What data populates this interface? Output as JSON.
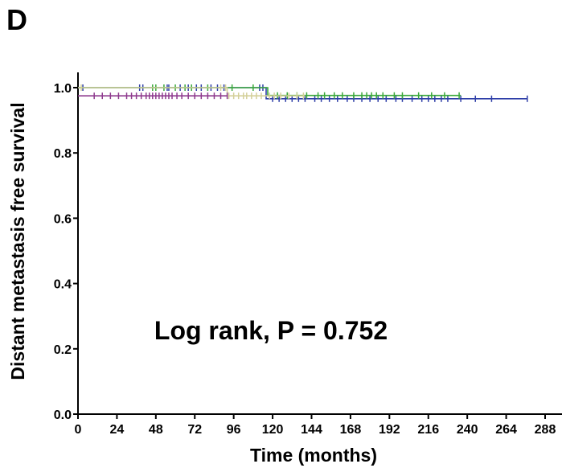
{
  "panel_label": "D",
  "chart_data": {
    "type": "line",
    "subtype": "kaplan-meier",
    "ylabel": "Distant metastasis free survival",
    "xlabel": "Time (months)",
    "annotation": "Log rank, P = 0.752",
    "xlim": [
      0,
      300
    ],
    "ylim": [
      0,
      1.05
    ],
    "xticks": [
      0,
      24,
      48,
      72,
      96,
      120,
      144,
      168,
      192,
      216,
      240,
      264,
      288
    ],
    "yticks": [
      0.0,
      0.2,
      0.4,
      0.6,
      0.8,
      1.0
    ],
    "ytick_labels": [
      "0.0",
      "0.2",
      "0.4",
      "0.6",
      "0.8",
      "1.0"
    ],
    "grid": false,
    "series": [
      {
        "color": "#2f3fa8",
        "steps": [
          [
            0,
            1.0
          ],
          [
            116,
            1.0
          ],
          [
            116,
            0.966
          ],
          [
            277,
            0.966
          ]
        ],
        "censor": [
          3,
          38,
          40,
          55,
          56,
          63,
          68,
          73,
          76,
          82,
          86,
          90,
          112,
          114,
          120,
          124,
          128,
          132,
          136,
          140,
          146,
          150,
          155,
          160,
          166,
          170,
          175,
          180,
          185,
          190,
          196,
          200,
          206,
          212,
          216,
          220,
          224,
          228,
          236,
          245,
          255,
          277
        ]
      },
      {
        "color": "#3aa83a",
        "steps": [
          [
            0,
            1.0
          ],
          [
            117,
            1.0
          ],
          [
            117,
            0.976
          ],
          [
            236,
            0.976
          ]
        ],
        "censor": [
          46,
          48,
          53,
          60,
          66,
          70,
          80,
          95,
          108,
          123,
          129,
          135,
          141,
          148,
          152,
          158,
          163,
          170,
          175,
          178,
          181,
          184,
          188,
          195,
          200,
          210,
          218,
          226,
          235
        ]
      },
      {
        "color": "#d4d09a",
        "steps": [
          [
            0,
            1.0
          ],
          [
            92,
            1.0
          ],
          [
            92,
            0.975
          ],
          [
            140,
            0.975
          ]
        ],
        "censor": [
          2,
          88,
          91,
          93,
          96,
          99,
          102,
          104,
          107,
          110,
          113,
          118,
          121,
          125,
          130,
          135,
          139
        ]
      },
      {
        "color": "#8e3a8e",
        "steps": [
          [
            0,
            0.975
          ],
          [
            92,
            0.975
          ]
        ],
        "censor": [
          10,
          15,
          20,
          25,
          30,
          33,
          36,
          39,
          42,
          44,
          46,
          48,
          50,
          52,
          54,
          56,
          58,
          61,
          64,
          68,
          72,
          76,
          80,
          84,
          88,
          92
        ]
      }
    ]
  }
}
